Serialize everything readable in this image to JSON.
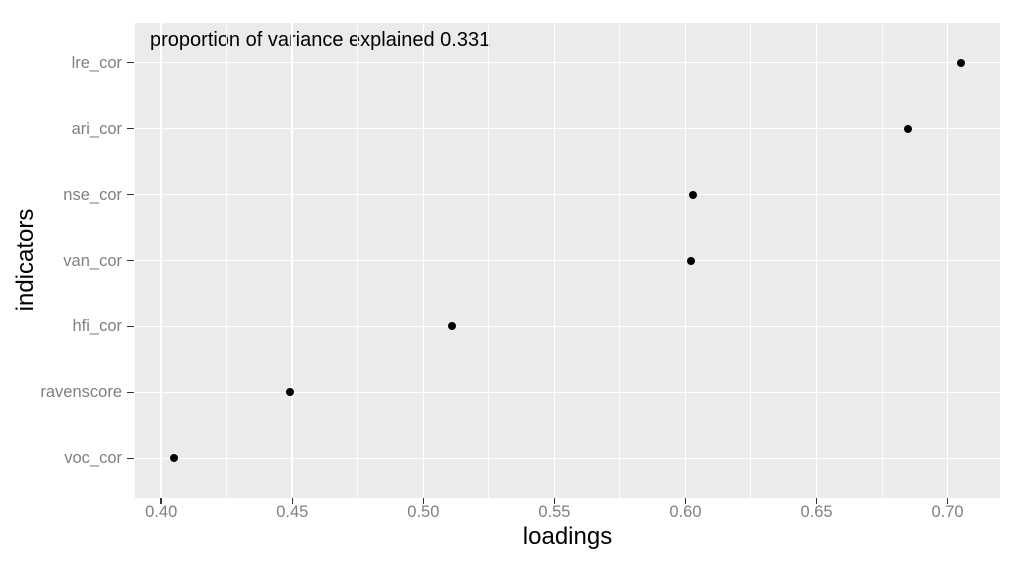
{
  "chart_data": {
    "type": "scatter",
    "variant": "dot-plot",
    "annotation": "proportion of variance explained 0.331",
    "xlabel": "loadings",
    "ylabel": "indicators",
    "categories": [
      "lre_cor",
      "ari_cor",
      "nse_cor",
      "van_cor",
      "hfi_cor",
      "ravenscore",
      "voc_cor"
    ],
    "values": [
      0.705,
      0.685,
      0.603,
      0.602,
      0.511,
      0.449,
      0.405
    ],
    "x_tick_labels": [
      "0.40",
      "0.45",
      "0.50",
      "0.55",
      "0.60",
      "0.65",
      "0.70"
    ],
    "x_tick_values": [
      0.4,
      0.45,
      0.5,
      0.55,
      0.6,
      0.65,
      0.7
    ],
    "x_minor_values": [
      0.425,
      0.475,
      0.525,
      0.575,
      0.625,
      0.675
    ],
    "xlim": [
      0.39,
      0.72
    ],
    "grid": "white major gridlines on gray panel; thin white x-minor gridlines; no y-minor",
    "legend": "none",
    "colors": {
      "figure_bg": "#ffffff",
      "panel_bg": "#ebebeb",
      "grid_major": "#ffffff",
      "grid_minor": "#ffffff",
      "point": "#000000",
      "tick_label": "#808080",
      "tick_mark": "#333333",
      "axis_title": "#000000",
      "annotation": "#000000"
    }
  }
}
